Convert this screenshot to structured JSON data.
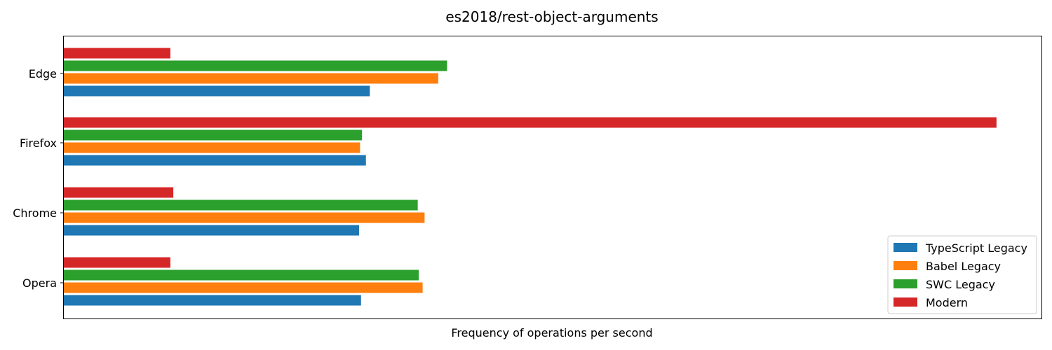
{
  "chart_data": {
    "type": "bar",
    "orientation": "horizontal",
    "title": "es2018/rest-object-arguments",
    "xlabel": "Frequency of operations per second",
    "ylabel": "",
    "xlim": [
      0,
      1000
    ],
    "x_ticks_shown": false,
    "grid": false,
    "legend_position": "lower-right",
    "categories": [
      "Edge",
      "Firefox",
      "Chrome",
      "Opera"
    ],
    "series": [
      {
        "name": "TypeScript Legacy",
        "color": "#1f77b4",
        "values": [
          313,
          309,
          302,
          304
        ]
      },
      {
        "name": "Babel Legacy",
        "color": "#ff7f0e",
        "values": [
          383,
          303,
          369,
          367
        ]
      },
      {
        "name": "SWC Legacy",
        "color": "#2ca02c",
        "values": [
          392,
          305,
          362,
          363
        ]
      },
      {
        "name": "Modern",
        "color": "#d62728",
        "values": [
          109,
          954,
          112,
          109
        ]
      }
    ]
  }
}
